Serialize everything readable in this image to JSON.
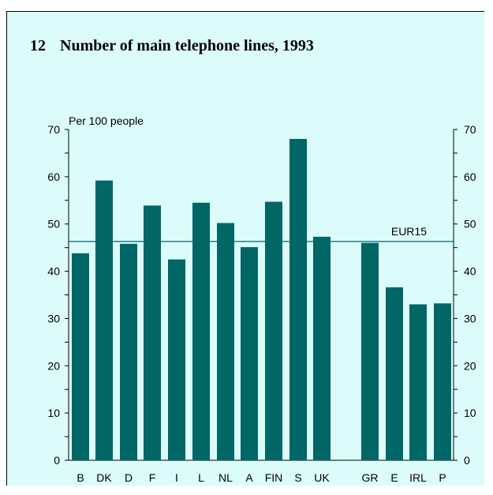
{
  "title_number": "12",
  "title_text": "Number of main telephone lines, 1993",
  "chart_data": {
    "type": "bar",
    "title": "Number of main telephone lines, 1993",
    "ylabel": "Per 100 people",
    "xlabel": "",
    "categories": [
      "B",
      "DK",
      "D",
      "F",
      "I",
      "L",
      "NL",
      "A",
      "FIN",
      "S",
      "UK",
      "GR",
      "E",
      "IRL",
      "P"
    ],
    "values": [
      43.8,
      59.2,
      45.8,
      53.9,
      42.5,
      54.5,
      50.2,
      45.1,
      54.7,
      68.0,
      47.3,
      46.0,
      36.6,
      33.0,
      33.2
    ],
    "ylim": [
      0,
      70
    ],
    "yticks": [
      0,
      10,
      20,
      30,
      40,
      50,
      60,
      70
    ],
    "reference_line": {
      "label": "EUR15",
      "value": 46.3
    },
    "grid": false,
    "colors": {
      "bar": "#006666",
      "reference_line": "#006666",
      "background": "#dcfcfc"
    }
  }
}
